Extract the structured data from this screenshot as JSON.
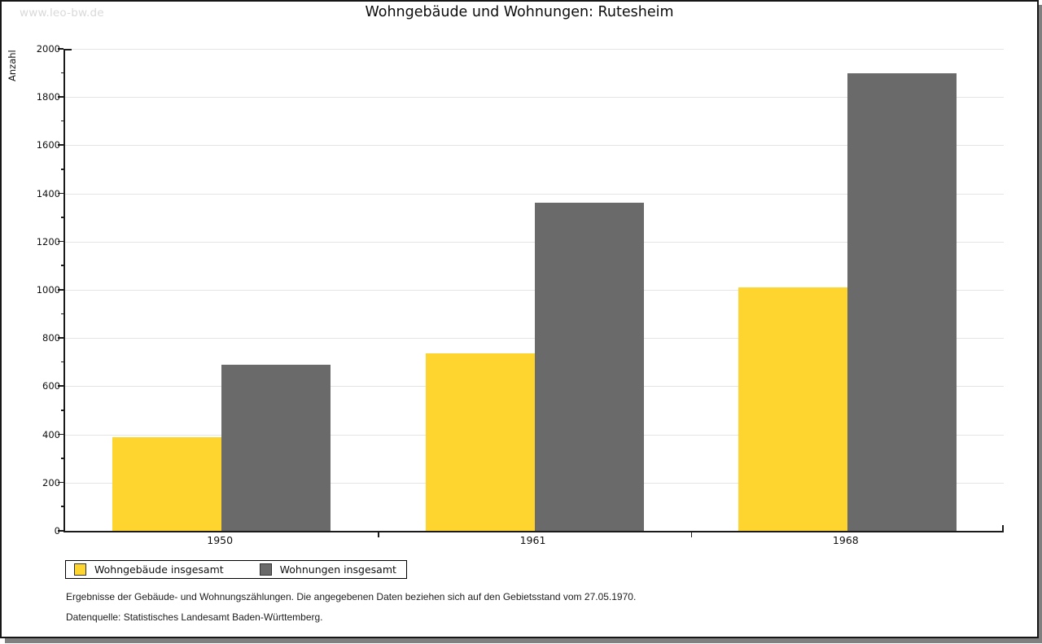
{
  "watermark": "www.leo-bw.de",
  "title": "Wohngebäude und Wohnungen: Rutesheim",
  "chart_data": {
    "type": "bar",
    "title": "Wohngebäude und Wohnungen: Rutesheim",
    "xlabel": "",
    "ylabel": "Anzahl",
    "ylim": [
      0,
      2000
    ],
    "yticks": [
      0,
      200,
      400,
      600,
      800,
      1000,
      1200,
      1400,
      1600,
      1800,
      2000
    ],
    "minor_ytick_step": 100,
    "grid": "horizontal",
    "legend_position": "bottom-left",
    "categories": [
      "1950",
      "1961",
      "1968"
    ],
    "series": [
      {
        "name": "Wohngebäude insgesamt",
        "color": "#fdd52e",
        "values": [
          390,
          735,
          1010
        ]
      },
      {
        "name": "Wohnungen insgesamt",
        "color": "#6a6a6a",
        "values": [
          690,
          1360,
          1900
        ]
      }
    ]
  },
  "footnotes": {
    "line1": "Ergebnisse der Gebäude- und Wohnungszählungen. Die angegebenen Daten beziehen sich auf den Gebietsstand vom 27.05.1970.",
    "line2": "Datenquelle: Statistisches Landesamt Baden-Württemberg."
  },
  "colors": {
    "bar_yellow": "#fdd52e",
    "bar_gray": "#6a6a6a",
    "grid_line": "#e4e4e4",
    "axis": "#1a1a1a",
    "watermark": "#d9d9d9",
    "page_shadow": "#808080"
  }
}
